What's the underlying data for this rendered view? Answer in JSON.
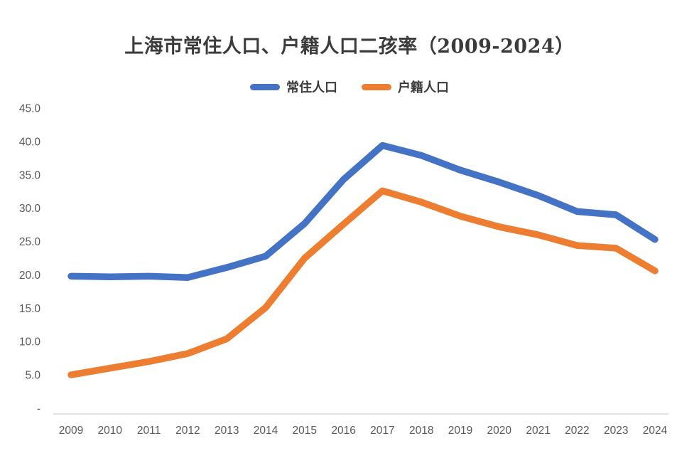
{
  "chart_data": {
    "type": "line",
    "title": "上海市常住人口、户籍人口二孩率（2009-2024）",
    "xlabel": "",
    "ylabel": "",
    "x": [
      "2009",
      "2010",
      "2011",
      "2012",
      "2013",
      "2014",
      "2015",
      "2016",
      "2017",
      "2018",
      "2019",
      "2020",
      "2021",
      "2022",
      "2023",
      "2024"
    ],
    "series": [
      {
        "name": "常住人口",
        "color": "#4472C4",
        "values": [
          19.8,
          19.7,
          19.8,
          19.6,
          21.1,
          22.8,
          27.7,
          34.3,
          39.4,
          37.9,
          35.7,
          33.9,
          31.9,
          29.5,
          29.0,
          25.3
        ]
      },
      {
        "name": "户籍人口",
        "color": "#ED7D31",
        "values": [
          5.0,
          6.0,
          7.0,
          8.2,
          10.4,
          15.1,
          22.5,
          27.6,
          32.6,
          30.9,
          28.8,
          27.2,
          26.0,
          24.4,
          24.0,
          20.6
        ]
      }
    ],
    "ylim": [
      0,
      45
    ],
    "y_ticks": [
      {
        "value": 45,
        "label": "45.0"
      },
      {
        "value": 40,
        "label": "40.0"
      },
      {
        "value": 35,
        "label": "35.0"
      },
      {
        "value": 30,
        "label": "30.0"
      },
      {
        "value": 25,
        "label": "25.0"
      },
      {
        "value": 20,
        "label": "20.0"
      },
      {
        "value": 15,
        "label": "15.0"
      },
      {
        "value": 10,
        "label": "10.0"
      },
      {
        "value": 5,
        "label": "5.0"
      },
      {
        "value": 0,
        "label": "-"
      }
    ],
    "grid": false,
    "legend_position": "top"
  },
  "colors": {
    "title_text": "#3b3b3b",
    "tick_text": "#595959",
    "axis_line": "#d9d9d9",
    "background": "#ffffff"
  }
}
